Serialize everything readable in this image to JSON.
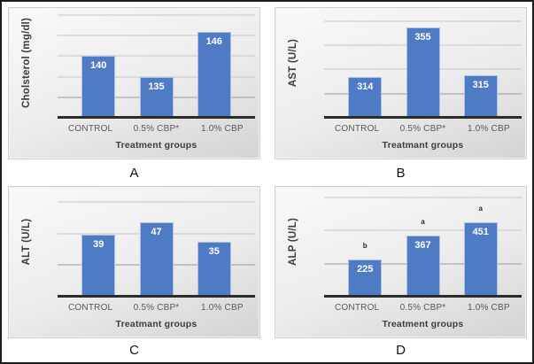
{
  "figure": {
    "panels": [
      "A",
      "B",
      "C",
      "D"
    ]
  },
  "colors": {
    "bar_fill": "#4f7bc5",
    "bar_edge": "#a9c1e4",
    "gridline": "#c6c6c6",
    "gridline_major": "#999999",
    "axis_line": "#2b2b2b",
    "panel_top": "#f9f9f9",
    "panel_bottom": "#d3d3d3",
    "value_label": "#ffffff",
    "axis_text": "#595959",
    "title_text": "#3d3d3d",
    "sig_text": "#262626",
    "caption_text": "#111111",
    "border": "#1c1c1c"
  },
  "chart_data": [
    {
      "type": "bar",
      "panel": "A",
      "ylabel": "Cholsterol (mg/dl)",
      "xlabel": "Treatment groups",
      "categories": [
        "CONTROL",
        "0.5% CBP*",
        "1.0% CBP"
      ],
      "values": [
        140,
        135,
        146
      ],
      "ylim": [
        125,
        150
      ],
      "grid_step": 5,
      "grid": true,
      "legend": false,
      "sig_letters": null
    },
    {
      "type": "bar",
      "panel": "B",
      "ylabel": "AST (U/L)",
      "xlabel": "Treatmant groups",
      "categories": [
        "CONTROL",
        "0.5% CBP*",
        "1.0% CBP"
      ],
      "values": [
        314,
        355,
        315
      ],
      "ylim": [
        280,
        365
      ],
      "grid_step": 20,
      "grid": true,
      "legend": false,
      "sig_letters": null
    },
    {
      "type": "bar",
      "panel": "C",
      "ylabel": "ALT (U/L)",
      "xlabel": "Treatmant groups",
      "categories": [
        "CONTROL",
        "0.5% CBP*",
        "1.0% CBP"
      ],
      "values": [
        39,
        47,
        35
      ],
      "ylim": [
        0,
        65
      ],
      "grid_step": 20,
      "grid": true,
      "legend": false,
      "sig_letters": null
    },
    {
      "type": "bar",
      "panel": "D",
      "ylabel": "ALP (U/L)",
      "xlabel": "Treatment groups",
      "categories": [
        "CONTROL",
        "0.5% CBP*",
        "1.0% CBP"
      ],
      "values": [
        225,
        367,
        451
      ],
      "ylim": [
        0,
        620
      ],
      "grid_step": 200,
      "grid": true,
      "legend": false,
      "sig_letters": [
        "b",
        "a",
        "a"
      ]
    }
  ]
}
